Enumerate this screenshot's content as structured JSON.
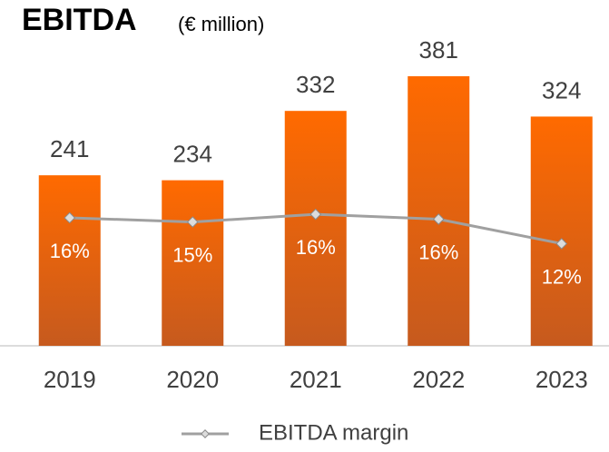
{
  "chart_data": {
    "type": "bar",
    "title": "EBITDA",
    "subtitle": "(€ million)",
    "categories": [
      "2019",
      "2020",
      "2021",
      "2022",
      "2023"
    ],
    "series": [
      {
        "name": "EBITDA",
        "type": "bar",
        "color": "#f76b0a",
        "values": [
          241,
          234,
          332,
          381,
          324
        ]
      },
      {
        "name": "EBITDA margin",
        "type": "line",
        "axis": "y2",
        "color": "#a0a0a0",
        "values": [
          15.8,
          15.2,
          16.3,
          15.6,
          12.1
        ],
        "value_labels": [
          "16%",
          "15%",
          "16%",
          "16%",
          "12%"
        ]
      }
    ],
    "ylim": [
      0,
      440
    ],
    "y2lim": [
      -2.5,
      42
    ],
    "legend": "bottom"
  }
}
